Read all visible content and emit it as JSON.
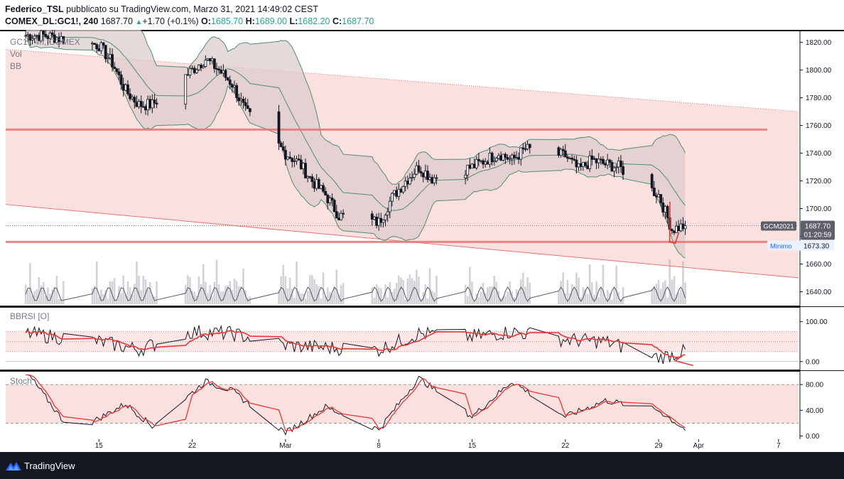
{
  "header": {
    "author": "Federico_TSL",
    "published_text": "pubblicato su TradingView.com, Marzo 31, 2021 14:49:02 CEST",
    "symbol": "COMEX_DL:GC1!, 240",
    "last": "1687.70",
    "change_arrow": "▲",
    "change": "+1.70 (+0.1%)",
    "o_label": "O:",
    "o_value": "1685.70",
    "h_label": "H:",
    "h_value": "1689.00",
    "l_label": "L:",
    "l_value": "1682.20",
    "c_label": "C:",
    "c_value": "1687.70"
  },
  "legend": {
    "main": [
      "GC1!, 4h, COMEX",
      "Vol",
      "BB"
    ],
    "rsi": "BBRSI [O]",
    "stoch": "Stoch"
  },
  "badges": {
    "symbol_tag": "GCM2021",
    "price": "1687.70",
    "countdown": "01:20:59",
    "min_label": "Minimo",
    "min_value": "1673.30"
  },
  "footer": {
    "brand": "TradingView",
    "logo_icon": "tradingview-logo-icon"
  },
  "colors": {
    "background": "#ffffff",
    "channel_fill": "#fbe0e0",
    "horizontal_line": "#e57373",
    "bb_band": "#4e8d74",
    "bb_fill": "#ddcccc",
    "candle": "#131722",
    "signal": "#e53935"
  },
  "chart_data": [
    {
      "type": "candlestick",
      "title": "GC1!, 4h, COMEX",
      "x_ticks": [
        "15",
        "22",
        "Mar",
        "8",
        "15",
        "22",
        "29",
        "Apr",
        "7"
      ],
      "ylim": [
        1630,
        1828
      ],
      "y_ticks": [
        1640,
        1660,
        1680,
        1700,
        1720,
        1740,
        1760,
        1780,
        1800,
        1820
      ],
      "indicators": [
        "Vol",
        "BB"
      ],
      "close_path": [
        {
          "date": "2021-02-11",
          "close": 1825
        },
        {
          "date": "2021-02-12",
          "close": 1823
        },
        {
          "date": "2021-02-15",
          "close": 1818
        },
        {
          "date": "2021-02-16",
          "close": 1805
        },
        {
          "date": "2021-02-17",
          "close": 1785
        },
        {
          "date": "2021-02-18",
          "close": 1775
        },
        {
          "date": "2021-02-19",
          "close": 1775
        },
        {
          "date": "2021-02-22",
          "close": 1800
        },
        {
          "date": "2021-02-23",
          "close": 1808
        },
        {
          "date": "2021-02-24",
          "close": 1800
        },
        {
          "date": "2021-02-25",
          "close": 1790
        },
        {
          "date": "2021-02-26",
          "close": 1770
        },
        {
          "date": "2021-03-01",
          "close": 1740
        },
        {
          "date": "2021-03-02",
          "close": 1733
        },
        {
          "date": "2021-03-03",
          "close": 1720
        },
        {
          "date": "2021-03-04",
          "close": 1710
        },
        {
          "date": "2021-03-05",
          "close": 1695
        },
        {
          "date": "2021-03-08",
          "close": 1690
        },
        {
          "date": "2021-03-09",
          "close": 1708
        },
        {
          "date": "2021-03-10",
          "close": 1720
        },
        {
          "date": "2021-03-11",
          "close": 1730
        },
        {
          "date": "2021-03-12",
          "close": 1722
        },
        {
          "date": "2021-03-15",
          "close": 1730
        },
        {
          "date": "2021-03-16",
          "close": 1735
        },
        {
          "date": "2021-03-17",
          "close": 1740
        },
        {
          "date": "2021-03-18",
          "close": 1735
        },
        {
          "date": "2021-03-19",
          "close": 1743
        },
        {
          "date": "2021-03-22",
          "close": 1738
        },
        {
          "date": "2021-03-23",
          "close": 1728
        },
        {
          "date": "2021-03-24",
          "close": 1735
        },
        {
          "date": "2021-03-25",
          "close": 1732
        },
        {
          "date": "2021-03-26",
          "close": 1730
        },
        {
          "date": "2021-03-29",
          "close": 1710
        },
        {
          "date": "2021-03-30",
          "close": 1685
        },
        {
          "date": "2021-03-31",
          "close": 1687.7
        }
      ],
      "horizontal_levels": [
        1757,
        1676
      ],
      "current_price": 1687.7,
      "minimum": 1673.3
    },
    {
      "type": "line",
      "title": "BBRSI [O]",
      "ylim": [
        -20,
        135
      ],
      "y_ticks": [
        0,
        100
      ],
      "series": [
        {
          "values": [
            {
              "date": "2021-02-11",
              "value": 65
            },
            {
              "date": "2021-02-15",
              "value": 50
            },
            {
              "date": "2021-02-18",
              "value": 30
            },
            {
              "date": "2021-02-22",
              "value": 75
            },
            {
              "date": "2021-02-25",
              "value": 70
            },
            {
              "date": "2021-03-01",
              "value": 40
            },
            {
              "date": "2021-03-04",
              "value": 35
            },
            {
              "date": "2021-03-08",
              "value": 30
            },
            {
              "date": "2021-03-11",
              "value": 70
            },
            {
              "date": "2021-03-15",
              "value": 62
            },
            {
              "date": "2021-03-18",
              "value": 75
            },
            {
              "date": "2021-03-22",
              "value": 55
            },
            {
              "date": "2021-03-25",
              "value": 50
            },
            {
              "date": "2021-03-29",
              "value": 10
            },
            {
              "date": "2021-03-31",
              "value": 25
            }
          ]
        }
      ],
      "bands": [
        25,
        50,
        75
      ]
    },
    {
      "type": "line",
      "title": "Stoch",
      "ylim": [
        -5,
        100
      ],
      "y_ticks": [
        0,
        40,
        80
      ],
      "series": [
        {
          "values": [
            {
              "date": "2021-02-11",
              "value": 60
            },
            {
              "date": "2021-02-13",
              "value": 5
            },
            {
              "date": "2021-02-17",
              "value": 50
            },
            {
              "date": "2021-02-19",
              "value": 15
            },
            {
              "date": "2021-02-23",
              "value": 85
            },
            {
              "date": "2021-02-25",
              "value": 70
            },
            {
              "date": "2021-03-01",
              "value": 5
            },
            {
              "date": "2021-03-04",
              "value": 45
            },
            {
              "date": "2021-03-08",
              "value": 10
            },
            {
              "date": "2021-03-11",
              "value": 90
            },
            {
              "date": "2021-03-15",
              "value": 30
            },
            {
              "date": "2021-03-18",
              "value": 85
            },
            {
              "date": "2021-03-22",
              "value": 30
            },
            {
              "date": "2021-03-25",
              "value": 55
            },
            {
              "date": "2021-03-29",
              "value": 40
            },
            {
              "date": "2021-03-31",
              "value": 10
            }
          ]
        }
      ],
      "levels": [
        20,
        80
      ]
    }
  ]
}
